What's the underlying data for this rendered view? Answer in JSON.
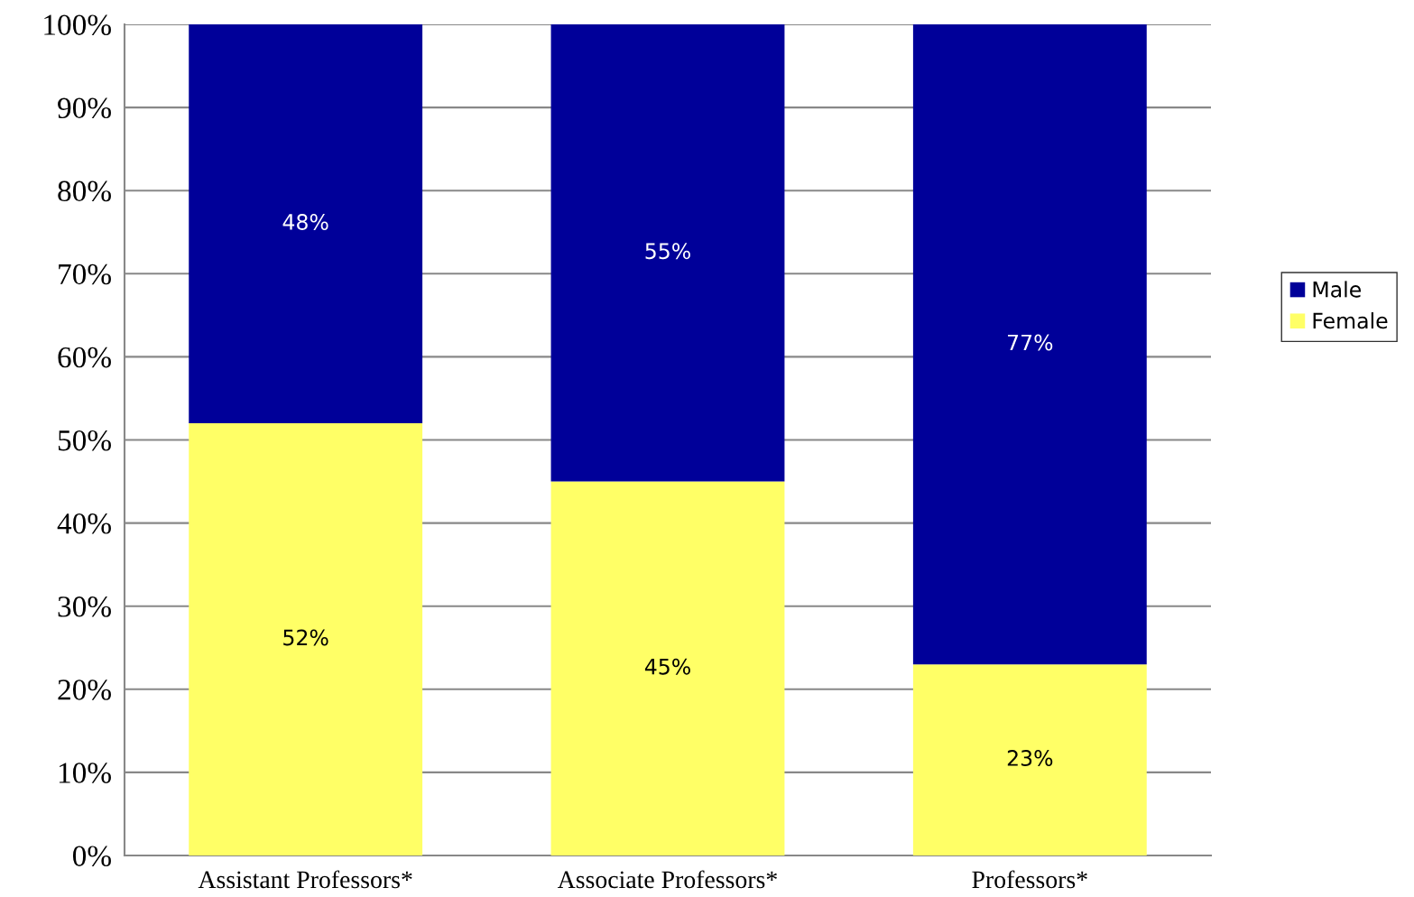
{
  "chart_data": {
    "type": "bar",
    "stacked": true,
    "categories": [
      "Assistant Professors*",
      "Associate Professors*",
      "Professors*"
    ],
    "series": [
      {
        "name": "Female",
        "color": "#ffff66",
        "values": [
          52,
          45,
          23
        ],
        "value_labels": [
          "52%",
          "45%",
          "23%"
        ]
      },
      {
        "name": "Male",
        "color": "#000099",
        "values": [
          48,
          55,
          77
        ],
        "value_labels": [
          "48%",
          "55%",
          "77%"
        ]
      }
    ],
    "ylim": [
      0,
      100
    ],
    "yticks": [
      {
        "value": 0,
        "label": "0%"
      },
      {
        "value": 10,
        "label": "10%"
      },
      {
        "value": 20,
        "label": "20%"
      },
      {
        "value": 30,
        "label": "30%"
      },
      {
        "value": 40,
        "label": "40%"
      },
      {
        "value": 50,
        "label": "50%"
      },
      {
        "value": 60,
        "label": "60%"
      },
      {
        "value": 70,
        "label": "70%"
      },
      {
        "value": 80,
        "label": "80%"
      },
      {
        "value": 90,
        "label": "90%"
      },
      {
        "value": 100,
        "label": "100%"
      }
    ],
    "grid": "y",
    "legend": "right"
  }
}
